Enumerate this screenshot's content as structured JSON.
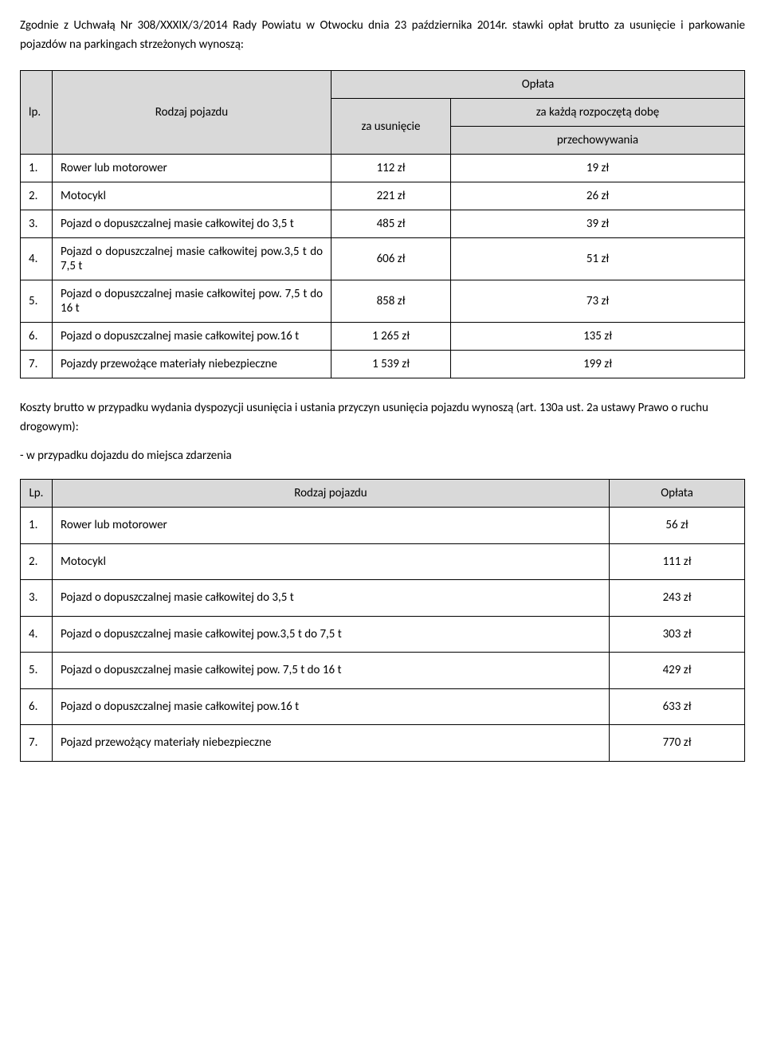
{
  "intro": "Zgodnie z Uchwałą Nr 308/XXXIX/3/2014 Rady Powiatu w Otwocku dnia 23 października 2014r. stawki opłat brutto za usunięcie i parkowanie pojazdów na parkingach strzeżonych wynoszą:",
  "table1": {
    "headers": {
      "lp": "lp.",
      "rodzaj": "Rodzaj pojazdu",
      "oplata": "Opłata",
      "usuniecie": "za usunięcie",
      "dobe": "za każdą rozpoczętą dobę",
      "przech": "przechowywania"
    },
    "rows": [
      {
        "lp": "1.",
        "desc": "Rower lub motorower",
        "c1": "112 zł",
        "c2": "19 zł",
        "justify": false
      },
      {
        "lp": "2.",
        "desc": "Motocykl",
        "c1": "221 zł",
        "c2": "26 zł",
        "justify": false
      },
      {
        "lp": "3.",
        "desc": "Pojazd o dopuszczalnej masie całkowitej do 3,5 t",
        "c1": "485 zł",
        "c2": "39 zł",
        "justify": true
      },
      {
        "lp": "4.",
        "desc": "Pojazd o dopuszczalnej masie całkowitej pow.3,5 t do 7,5 t",
        "c1": "606 zł",
        "c2": "51 zł",
        "justify": true
      },
      {
        "lp": "5.",
        "desc": "Pojazd o dopuszczalnej masie całkowitej pow. 7,5 t do 16 t",
        "c1": "858 zł",
        "c2": "73 zł",
        "justify": true
      },
      {
        "lp": "6.",
        "desc": "Pojazd o dopuszczalnej masie całkowitej pow.16 t",
        "c1": "1 265 zł",
        "c2": "135 zł",
        "justify": true
      },
      {
        "lp": "7.",
        "desc": "Pojazdy przewożące materiały niebezpieczne",
        "c1": "1 539 zł",
        "c2": "199 zł",
        "justify": false
      }
    ]
  },
  "mid1": "Koszty brutto w przypadku wydania dyspozycji usunięcia i ustania przyczyn usunięcia pojazdu wynoszą (art. 130a ust. 2a ustawy Prawo o ruchu drogowym):",
  "mid2": "- w przypadku dojazdu do miejsca zdarzenia",
  "table2": {
    "headers": {
      "lp": "Lp.",
      "rodzaj": "Rodzaj pojazdu",
      "oplata": "Opłata"
    },
    "rows": [
      {
        "lp": "1.",
        "desc": "Rower lub motorower",
        "c1": "56 zł"
      },
      {
        "lp": "2.",
        "desc": "Motocykl",
        "c1": "111 zł"
      },
      {
        "lp": "3.",
        "desc": "Pojazd o dopuszczalnej masie całkowitej  do 3,5 t",
        "c1": "243 zł"
      },
      {
        "lp": "4.",
        "desc": "Pojazd o dopuszczalnej masie całkowitej pow.3,5 t do 7,5 t",
        "c1": "303 zł"
      },
      {
        "lp": "5.",
        "desc": "Pojazd o dopuszczalnej masie całkowitej pow. 7,5 t do 16 t",
        "c1": "429 zł"
      },
      {
        "lp": "6.",
        "desc": "Pojazd o dopuszczalnej masie całkowitej  pow.16 t",
        "c1": "633 zł"
      },
      {
        "lp": "7.",
        "desc": "Pojazd przewożący materiały niebezpieczne",
        "c1": "770 zł"
      }
    ]
  },
  "colors": {
    "header_bg": "#d9d9d9",
    "border": "#000000",
    "text": "#000000",
    "background": "#ffffff"
  },
  "typography": {
    "font_family": "Calibri, Arial, sans-serif",
    "font_size_pt": 11
  }
}
